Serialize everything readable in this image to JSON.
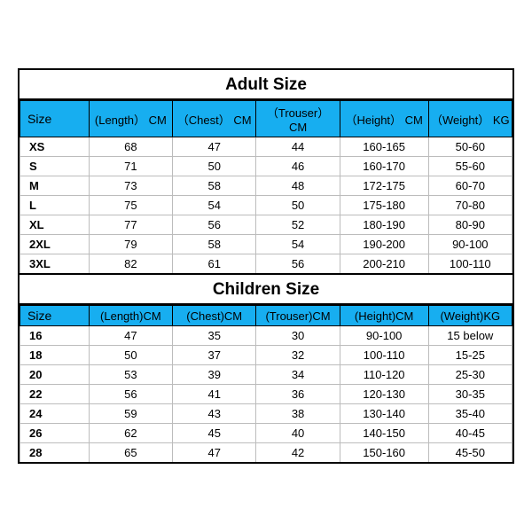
{
  "adult": {
    "title": "Adult Size",
    "header_bg": "#17aef0",
    "columns": [
      "Size",
      "(Length） CM",
      "（Chest） CM",
      "（Trouser） CM",
      "（Height） CM",
      "（Weight） KG"
    ],
    "rows": [
      [
        "XS",
        "68",
        "47",
        "44",
        "160-165",
        "50-60"
      ],
      [
        "S",
        "71",
        "50",
        "46",
        "160-170",
        "55-60"
      ],
      [
        "M",
        "73",
        "58",
        "48",
        "172-175",
        "60-70"
      ],
      [
        "L",
        "75",
        "54",
        "50",
        "175-180",
        "70-80"
      ],
      [
        "XL",
        "77",
        "56",
        "52",
        "180-190",
        "80-90"
      ],
      [
        "2XL",
        "79",
        "58",
        "54",
        "190-200",
        "90-100"
      ],
      [
        "3XL",
        "82",
        "61",
        "56",
        "200-210",
        "100-110"
      ]
    ]
  },
  "children": {
    "title": "Children Size",
    "header_bg": "#17aef0",
    "columns": [
      "Size",
      "(Length)CM",
      "(Chest)CM",
      "(Trouser)CM",
      "(Height)CM",
      "(Weight)KG"
    ],
    "rows": [
      [
        "16",
        "47",
        "35",
        "30",
        "90-100",
        "15 below"
      ],
      [
        "18",
        "50",
        "37",
        "32",
        "100-110",
        "15-25"
      ],
      [
        "20",
        "53",
        "39",
        "34",
        "110-120",
        "25-30"
      ],
      [
        "22",
        "56",
        "41",
        "36",
        "120-130",
        "30-35"
      ],
      [
        "24",
        "59",
        "43",
        "38",
        "130-140",
        "35-40"
      ],
      [
        "26",
        "62",
        "45",
        "40",
        "140-150",
        "40-45"
      ],
      [
        "28",
        "65",
        "47",
        "42",
        "150-160",
        "45-50"
      ]
    ]
  },
  "style": {
    "background": "#ffffff",
    "border_color": "#000000",
    "grid_color": "#bcbcbc",
    "title_fontsize": 19,
    "header_fontsize": 13,
    "cell_fontsize": 13,
    "col_widths_pct": [
      14,
      17,
      17,
      17,
      18,
      17
    ]
  }
}
